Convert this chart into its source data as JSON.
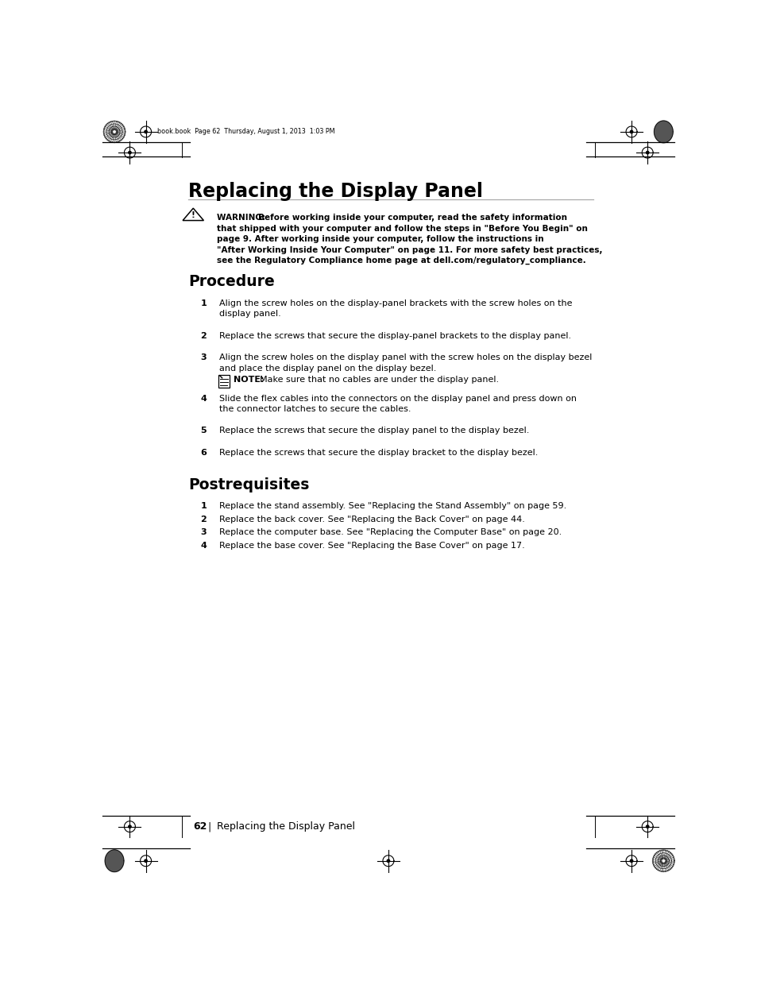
{
  "bg_color": "#ffffff",
  "page_width": 9.54,
  "page_height": 12.35,
  "header_text": "book.book  Page 62  Thursday, August 1, 2013  1:03 PM",
  "title": "Replacing the Display Panel",
  "procedure_title": "Procedure",
  "procedure_steps": [
    "Align the screw holes on the display-panel brackets with the screw holes on the\ndisplay panel.",
    "Replace the screws that secure the display-panel brackets to the display panel.",
    "Align the screw holes on the display panel with the screw holes on the display bezel\nand place the display panel on the display bezel.",
    "Slide the flex cables into the connectors on the display panel and press down on\nthe connector latches to secure the cables.",
    "Replace the screws that secure the display panel to the display bezel.",
    "Replace the screws that secure the display bracket to the display bezel."
  ],
  "note_text": "Make sure that no cables are under the display panel.",
  "postreq_title": "Postrequisites",
  "postreq_steps": [
    "Replace the stand assembly. See \"Replacing the Stand Assembly\" on page 59.",
    "Replace the back cover. See \"Replacing the Back Cover\" on page 44.",
    "Replace the computer base. See \"Replacing the Computer Base\" on page 20.",
    "Replace the base cover. See \"Replacing the Base Cover\" on page 17."
  ],
  "footer_page": "62",
  "footer_text": "Replacing the Display Panel",
  "warning_bold": "WARNING:  ",
  "warning_rest": [
    "Before working inside your computer, read the safety information",
    "that shipped with your computer and follow the steps in \"Before You Begin\" on",
    "page 9. After working inside your computer, follow the instructions in",
    "\"After Working Inside Your Computer\" on page 11. For more safety best practices,",
    "see the Regulatory Compliance home page at dell.com/regulatory_compliance."
  ]
}
